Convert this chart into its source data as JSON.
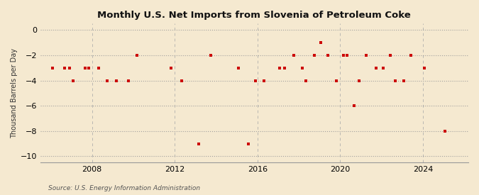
{
  "title": "Monthly U.S. Net Imports from Slovenia of Petroleum Coke",
  "ylabel": "Thousand Barrels per Day",
  "source": "Source: U.S. Energy Information Administration",
  "background_color": "#f5e9d0",
  "plot_background": "#f5e9d0",
  "marker_color": "#cc0000",
  "ylim": [
    -10.5,
    0.5
  ],
  "yticks": [
    0,
    -2,
    -4,
    -6,
    -8,
    -10
  ],
  "xticks": [
    2008,
    2012,
    2016,
    2020,
    2024
  ],
  "xlim": [
    2005.5,
    2026.2
  ],
  "data_points": [
    [
      2006.08,
      -3.0
    ],
    [
      2006.67,
      -3.0
    ],
    [
      2006.92,
      -3.0
    ],
    [
      2007.08,
      -4.0
    ],
    [
      2007.67,
      -3.0
    ],
    [
      2007.83,
      -3.0
    ],
    [
      2008.33,
      -3.0
    ],
    [
      2008.75,
      -4.0
    ],
    [
      2009.17,
      -4.0
    ],
    [
      2009.75,
      -4.0
    ],
    [
      2010.17,
      -2.0
    ],
    [
      2011.83,
      -3.0
    ],
    [
      2012.33,
      -4.0
    ],
    [
      2013.17,
      -9.0
    ],
    [
      2013.75,
      -2.0
    ],
    [
      2015.08,
      -3.0
    ],
    [
      2015.58,
      -9.0
    ],
    [
      2015.92,
      -4.0
    ],
    [
      2016.33,
      -4.0
    ],
    [
      2017.08,
      -3.0
    ],
    [
      2017.33,
      -3.0
    ],
    [
      2017.75,
      -2.0
    ],
    [
      2018.17,
      -3.0
    ],
    [
      2018.33,
      -4.0
    ],
    [
      2018.75,
      -2.0
    ],
    [
      2019.08,
      -1.0
    ],
    [
      2019.42,
      -2.0
    ],
    [
      2019.83,
      -4.0
    ],
    [
      2020.17,
      -2.0
    ],
    [
      2020.33,
      -2.0
    ],
    [
      2020.67,
      -6.0
    ],
    [
      2020.92,
      -4.0
    ],
    [
      2021.25,
      -2.0
    ],
    [
      2021.75,
      -3.0
    ],
    [
      2022.08,
      -3.0
    ],
    [
      2022.42,
      -2.0
    ],
    [
      2022.67,
      -4.0
    ],
    [
      2023.08,
      -4.0
    ],
    [
      2023.42,
      -2.0
    ],
    [
      2024.08,
      -3.0
    ],
    [
      2025.08,
      -8.0
    ]
  ]
}
